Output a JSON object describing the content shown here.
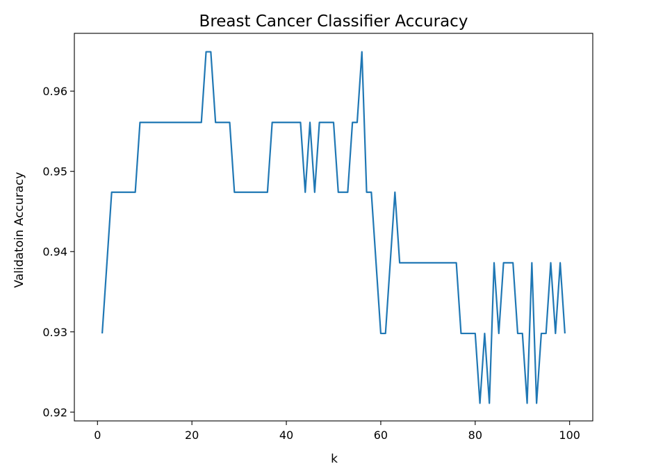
{
  "chart_data": {
    "type": "line",
    "title": "Breast Cancer Classifier Accuracy",
    "xlabel": "k",
    "ylabel": "Validatoin Accuracy",
    "xlim": [
      -4.9,
      104.9
    ],
    "ylim": [
      0.9189,
      0.9672
    ],
    "xticks": [
      0,
      20,
      40,
      60,
      80,
      100
    ],
    "yticks": [
      0.92,
      0.93,
      0.94,
      0.95,
      0.96
    ],
    "xtick_labels": [
      "0",
      "20",
      "40",
      "60",
      "80",
      "100"
    ],
    "ytick_labels": [
      "0.92",
      "0.93",
      "0.94",
      "0.95",
      "0.96"
    ],
    "grid": false,
    "line_color": "#1f77b4",
    "series": [
      {
        "x": [
          1,
          2,
          3,
          4,
          5,
          6,
          7,
          8,
          9,
          10,
          11,
          12,
          13,
          14,
          15,
          16,
          17,
          18,
          19,
          20,
          21,
          22,
          23,
          24,
          25,
          26,
          27,
          28,
          29,
          30,
          31,
          32,
          33,
          34,
          35,
          36,
          37,
          38,
          39,
          40,
          41,
          42,
          43,
          44,
          45,
          46,
          47,
          48,
          49,
          50,
          51,
          52,
          53,
          54,
          55,
          56,
          57,
          58,
          59,
          60,
          61,
          62,
          63,
          64,
          65,
          66,
          67,
          68,
          69,
          70,
          71,
          72,
          73,
          74,
          75,
          76,
          77,
          78,
          79,
          80,
          81,
          82,
          83,
          84,
          85,
          86,
          87,
          88,
          89,
          90,
          91,
          92,
          93,
          94,
          95,
          96,
          97,
          98,
          99
        ],
        "y": [
          0.9298,
          0.9386,
          0.9474,
          0.9474,
          0.9474,
          0.9474,
          0.9474,
          0.9474,
          0.9561,
          0.9561,
          0.9561,
          0.9561,
          0.9561,
          0.9561,
          0.9561,
          0.9561,
          0.9561,
          0.9561,
          0.9561,
          0.9561,
          0.9561,
          0.9561,
          0.9649,
          0.9649,
          0.9561,
          0.9561,
          0.9561,
          0.9561,
          0.9474,
          0.9474,
          0.9474,
          0.9474,
          0.9474,
          0.9474,
          0.9474,
          0.9474,
          0.9561,
          0.9561,
          0.9561,
          0.9561,
          0.9561,
          0.9561,
          0.9561,
          0.9474,
          0.9561,
          0.9474,
          0.9561,
          0.9561,
          0.9561,
          0.9561,
          0.9474,
          0.9474,
          0.9474,
          0.9561,
          0.9561,
          0.9649,
          0.9474,
          0.9474,
          0.9386,
          0.9298,
          0.9298,
          0.9386,
          0.9474,
          0.9386,
          0.9386,
          0.9386,
          0.9386,
          0.9386,
          0.9386,
          0.9386,
          0.9386,
          0.9386,
          0.9386,
          0.9386,
          0.9386,
          0.9386,
          0.9298,
          0.9298,
          0.9298,
          0.9298,
          0.9211,
          0.9298,
          0.9211,
          0.9386,
          0.9298,
          0.9386,
          0.9386,
          0.9386,
          0.9298,
          0.9298,
          0.9211,
          0.9386,
          0.9211,
          0.9298,
          0.9298,
          0.9386,
          0.9298,
          0.9386,
          0.9298
        ]
      }
    ]
  }
}
